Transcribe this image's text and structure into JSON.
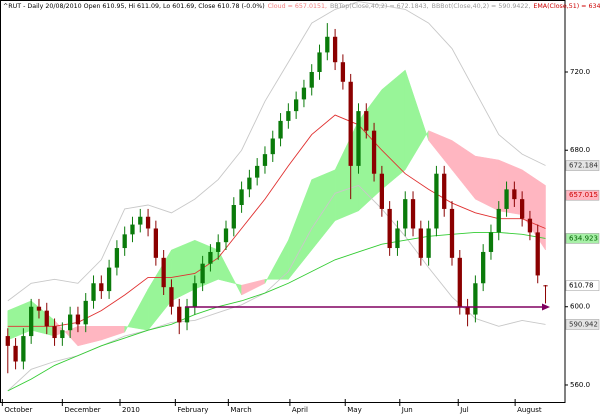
{
  "chart_data": {
    "type": "candlestick",
    "title_parts": [
      {
        "text": "^RUT - Daily 20/08/2010 Open 610.95, Hi 611.09, Lo 601.69, Close 610.78 (-0.0%)",
        "color": "#000000"
      },
      {
        "text": "Cloud = 657.0151,",
        "color": "#f08080"
      },
      {
        "text": "BBTop(Close,40,2) = 672.1843,",
        "color": "#999999"
      },
      {
        "text": "BBBot(Close,40,2) = 590.9422,",
        "color": "#999999"
      },
      {
        "text": "EMA(Close,51) = 634.923",
        "color": "#cc0000"
      }
    ],
    "xlim": [
      -1,
      71.5
    ],
    "xticks": [
      {
        "value": -0.7,
        "label": "October"
      },
      {
        "value": 7,
        "label": "December"
      },
      {
        "value": 14.4,
        "label": "2010"
      },
      {
        "value": 21.5,
        "label": "February"
      },
      {
        "value": 28.3,
        "label": "March"
      },
      {
        "value": 36.2,
        "label": "April"
      },
      {
        "value": 43.3,
        "label": "May"
      },
      {
        "value": 50.3,
        "label": "Jun"
      },
      {
        "value": 57.8,
        "label": "Jul"
      },
      {
        "value": 65.1,
        "label": "August"
      }
    ],
    "ylim": [
      551.3,
      756.8
    ],
    "yticks": [
      {
        "value": 720,
        "label": "720.0"
      },
      {
        "value": 680,
        "label": "680.0"
      },
      {
        "value": 600,
        "label": "600.0"
      },
      {
        "value": 560,
        "label": "560.0"
      }
    ],
    "up_color": "#0a7a0a",
    "down_color": "#8b0000",
    "open": [
      585,
      580,
      572,
      585,
      600,
      598,
      590,
      584,
      588,
      596,
      591,
      603,
      612,
      608,
      620,
      630,
      637,
      642,
      646,
      640,
      625,
      610,
      600,
      592,
      600,
      612,
      622,
      628,
      633,
      640,
      652,
      660,
      666,
      672,
      678,
      686,
      695,
      700,
      706,
      712,
      720,
      730,
      738,
      725,
      715,
      672,
      700,
      690,
      668,
      650,
      630,
      640,
      655,
      640,
      625,
      640,
      668,
      650,
      625,
      600,
      596,
      612,
      628,
      638,
      650,
      660,
      655,
      645,
      638,
      610.95
    ],
    "high": [
      589,
      584,
      589,
      604,
      604,
      602,
      594,
      592,
      600,
      600,
      607,
      616,
      616,
      624,
      634,
      641,
      646,
      650,
      650,
      644,
      629,
      614,
      604,
      604,
      616,
      626,
      632,
      637,
      644,
      656,
      664,
      670,
      676,
      682,
      690,
      699,
      704,
      710,
      716,
      724,
      734,
      745,
      742,
      729,
      719,
      704,
      704,
      694,
      672,
      654,
      644,
      659,
      659,
      644,
      644,
      672,
      672,
      654,
      629,
      604,
      616,
      632,
      642,
      654,
      664,
      664,
      659,
      649,
      642,
      611.09
    ],
    "low": [
      566,
      568,
      568,
      581,
      594,
      586,
      580,
      580,
      584,
      587,
      587,
      599,
      604,
      604,
      616,
      626,
      633,
      638,
      636,
      621,
      606,
      596,
      586,
      588,
      596,
      608,
      618,
      624,
      629,
      636,
      648,
      656,
      662,
      668,
      674,
      682,
      691,
      696,
      702,
      708,
      716,
      726,
      721,
      711,
      655,
      668,
      686,
      664,
      646,
      626,
      626,
      636,
      636,
      621,
      621,
      636,
      646,
      621,
      596,
      590,
      592,
      608,
      624,
      634,
      646,
      651,
      641,
      634,
      612,
      601.69
    ],
    "close": [
      580,
      572,
      585,
      600,
      598,
      590,
      584,
      588,
      596,
      591,
      603,
      612,
      608,
      620,
      630,
      637,
      642,
      646,
      640,
      625,
      610,
      600,
      592,
      600,
      612,
      622,
      628,
      633,
      640,
      652,
      660,
      666,
      672,
      678,
      686,
      695,
      700,
      706,
      712,
      720,
      730,
      738,
      725,
      715,
      672,
      700,
      690,
      668,
      650,
      630,
      640,
      655,
      640,
      625,
      640,
      668,
      650,
      625,
      600,
      596,
      612,
      628,
      638,
      650,
      660,
      655,
      645,
      638,
      616,
      610.78
    ],
    "overlay_x": [
      0,
      3,
      6,
      9,
      12,
      15,
      18,
      21,
      24,
      27,
      30,
      33,
      36,
      39,
      42,
      45,
      48,
      51,
      54,
      57,
      60,
      63,
      66,
      69
    ],
    "cloud": {
      "up_color": "#98f598",
      "down_color": "#ffb6c1",
      "span_a": [
        598,
        603,
        593,
        580,
        583,
        587,
        609,
        629,
        634,
        629,
        606,
        612,
        634,
        665,
        670,
        695,
        711,
        721,
        685,
        670,
        655,
        649,
        647,
        629
      ],
      "span_b": [
        583,
        588,
        585,
        590,
        590,
        590,
        588,
        603,
        609,
        614,
        611,
        614,
        614,
        629,
        644,
        649,
        660,
        670,
        690,
        685,
        677,
        675,
        670,
        662
      ]
    },
    "lines": [
      {
        "color": "#c8c8c8",
        "values": [
          603,
          612,
          614,
          612,
          624,
          650,
          652,
          648,
          655,
          665,
          680,
          705,
          725,
          745,
          752,
          756,
          754,
          752,
          745,
          732,
          710,
          688,
          678,
          672.184
        ]
      },
      {
        "color": "#c8c8c8",
        "values": [
          557,
          568,
          572,
          575,
          580,
          585,
          588,
          592,
          593,
          597,
          601,
          607,
          618,
          640,
          658,
          662,
          650,
          636,
          620,
          605,
          594,
          590,
          593,
          590.942
        ]
      },
      {
        "color": "#e03030",
        "values": [
          590,
          590,
          590,
          592,
          598,
          606,
          615,
          615,
          617,
          625,
          640,
          655,
          672,
          688,
          698,
          693,
          680,
          668,
          660,
          653,
          648,
          645,
          645,
          640
        ]
      },
      {
        "color": "#33cc33",
        "values": [
          557,
          563,
          570,
          575,
          580,
          584,
          588,
          591,
          596,
          600,
          603,
          607,
          612,
          618,
          624,
          628,
          632,
          634,
          636,
          637,
          638,
          638,
          637,
          634.923
        ]
      }
    ],
    "price_labels": [
      {
        "value": 672.184,
        "bg": "#e4e4e4",
        "fg": "#333333"
      },
      {
        "value": 657.015,
        "bg": "#ffb6c1",
        "fg": "#cc0000"
      },
      {
        "value": 634.923,
        "bg": "#a8f0a8",
        "fg": "#006600"
      },
      {
        "value": 610.78,
        "bg": "#ffffff",
        "fg": "#000000"
      },
      {
        "value": 590.942,
        "bg": "#e4e4e4",
        "fg": "#333333"
      }
    ]
  }
}
